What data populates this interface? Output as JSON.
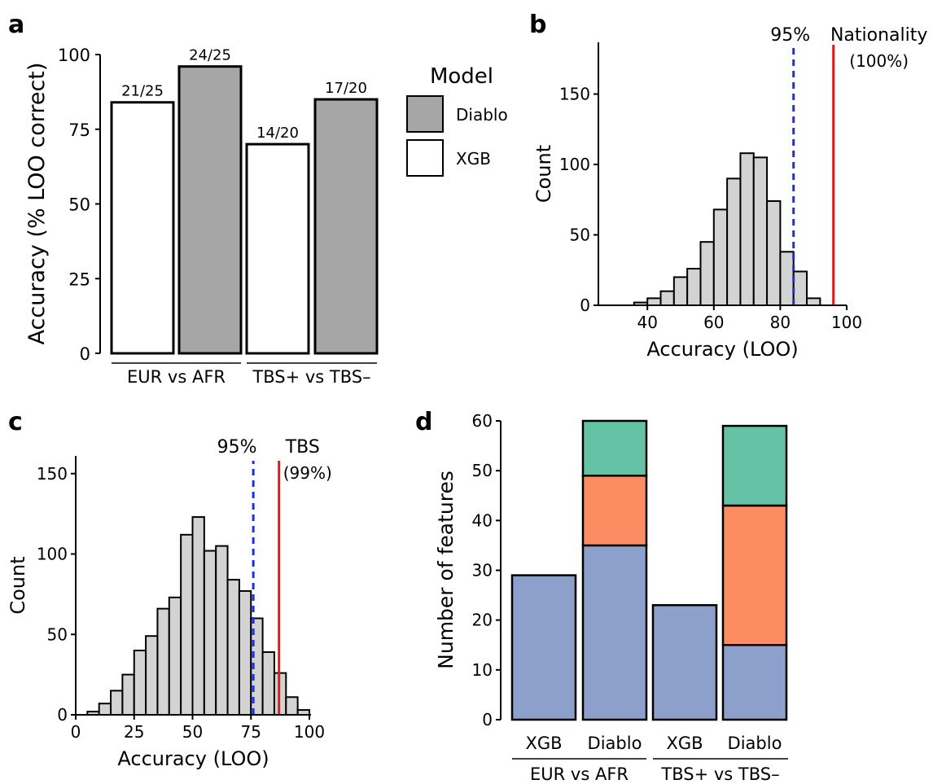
{
  "chart_data": [
    {
      "panel": "a",
      "type": "bar",
      "categories": [
        "EUR vs AFR",
        "TBS+ vs TBS–"
      ],
      "series": [
        {
          "name": "XGB",
          "values": [
            84,
            70
          ],
          "labels": [
            "21/25",
            "14/20"
          ],
          "color": "#ffffff"
        },
        {
          "name": "Diablo",
          "values": [
            96,
            85
          ],
          "labels": [
            "24/25",
            "17/20"
          ],
          "color": "#a6a6a6"
        }
      ],
      "ylabel": "Accuracy (% LOO correct)",
      "yticks": [
        "0",
        "25",
        "50",
        "75",
        "100"
      ],
      "ylim": [
        0,
        100
      ],
      "legend": {
        "title": "Model",
        "entries": [
          "Diablo",
          "XGB"
        ],
        "placement": "right"
      }
    },
    {
      "panel": "b",
      "type": "bar",
      "subtype": "histogram",
      "bin_width": 4,
      "bins": [
        [
          36,
          2
        ],
        [
          40,
          5
        ],
        [
          44,
          10
        ],
        [
          48,
          20
        ],
        [
          52,
          26
        ],
        [
          56,
          45
        ],
        [
          60,
          68
        ],
        [
          64,
          90
        ],
        [
          68,
          108
        ],
        [
          72,
          105
        ],
        [
          76,
          74
        ],
        [
          80,
          38
        ],
        [
          84,
          24
        ],
        [
          88,
          5
        ]
      ],
      "xlabel": "Accuracy (LOO)",
      "ylabel": "Count",
      "xticks": [
        "40",
        "60",
        "80",
        "100"
      ],
      "yticks": [
        "0",
        "50",
        "100",
        "150"
      ],
      "xlim": [
        25,
        100
      ],
      "ylim": [
        0,
        185
      ],
      "reference_lines": [
        {
          "x": 84,
          "label": "95%",
          "color": "#1f2fd9",
          "style": "dashed"
        },
        {
          "x": 96,
          "label": "Nationality",
          "sublabel": "(100%)",
          "color": "#e31a1c",
          "style": "solid"
        }
      ]
    },
    {
      "panel": "c",
      "type": "bar",
      "subtype": "histogram",
      "bin_width": 5,
      "bins": [
        [
          5,
          2
        ],
        [
          10,
          7
        ],
        [
          15,
          15
        ],
        [
          20,
          25
        ],
        [
          25,
          40
        ],
        [
          30,
          49
        ],
        [
          35,
          66
        ],
        [
          40,
          73
        ],
        [
          45,
          112
        ],
        [
          50,
          123
        ],
        [
          55,
          102
        ],
        [
          60,
          105
        ],
        [
          65,
          84
        ],
        [
          70,
          77
        ],
        [
          75,
          60
        ],
        [
          80,
          39
        ],
        [
          85,
          26
        ],
        [
          90,
          11
        ],
        [
          95,
          3
        ]
      ],
      "xlabel": "Accuracy (LOO)",
      "ylabel": "Count",
      "xticks": [
        "0",
        "25",
        "50",
        "75",
        "100"
      ],
      "yticks": [
        "0",
        "50",
        "100",
        "150"
      ],
      "xlim": [
        0,
        100
      ],
      "ylim": [
        0,
        160
      ],
      "reference_lines": [
        {
          "x": 76,
          "label": "95%",
          "color": "#1f2fd9",
          "style": "dashed"
        },
        {
          "x": 87,
          "label": "TBS",
          "sublabel": "(99%)",
          "color": "#e31a1c",
          "style": "solid"
        }
      ]
    },
    {
      "panel": "d",
      "type": "bar",
      "subtype": "stacked",
      "categories": [
        "XGB",
        "Diablo",
        "XGB",
        "Diablo"
      ],
      "groups": [
        {
          "label": "EUR vs AFR",
          "members": [
            0,
            1
          ]
        },
        {
          "label": "TBS+ vs TBS–",
          "members": [
            2,
            3
          ]
        }
      ],
      "series": [
        {
          "values": [
            29,
            35,
            23,
            15
          ],
          "color": "#8da0cb"
        },
        {
          "values": [
            0,
            14,
            0,
            28
          ],
          "color": "#fc8d62"
        },
        {
          "values": [
            0,
            11,
            0,
            16
          ],
          "color": "#66c2a5"
        }
      ],
      "ylabel": "Number of features",
      "yticks": [
        "0",
        "10",
        "20",
        "30",
        "40",
        "50",
        "60"
      ],
      "ylim": [
        0,
        60
      ]
    }
  ],
  "panel_letters": [
    "a",
    "b",
    "c",
    "d"
  ]
}
